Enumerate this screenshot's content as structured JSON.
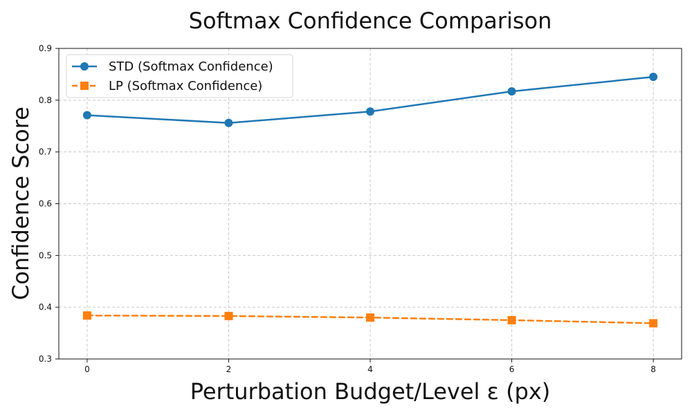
{
  "chart_data": {
    "type": "line",
    "title": "Softmax Confidence Comparison",
    "xlabel": "Perturbation Budget/Level ε (px)",
    "ylabel": "Confidence Score",
    "x": [
      0,
      2,
      4,
      6,
      8
    ],
    "xticks": [
      "0",
      "2",
      "4",
      "6",
      "8"
    ],
    "xlim": [
      -0.4,
      8.4
    ],
    "yticks": [
      "0.3",
      "0.4",
      "0.5",
      "0.6",
      "0.7",
      "0.8",
      "0.9"
    ],
    "ylim": [
      0.3,
      0.9
    ],
    "grid": true,
    "legend_position": "top-left",
    "series": [
      {
        "name": "STD (Softmax Confidence)",
        "values": [
          0.771,
          0.756,
          0.778,
          0.817,
          0.845
        ],
        "color": "#1f77b4",
        "marker": "circle",
        "linestyle": "solid"
      },
      {
        "name": "LP (Softmax Confidence)",
        "values": [
          0.384,
          0.383,
          0.38,
          0.375,
          0.369
        ],
        "color": "#ff7f0e",
        "marker": "square",
        "linestyle": "dashed"
      }
    ]
  }
}
